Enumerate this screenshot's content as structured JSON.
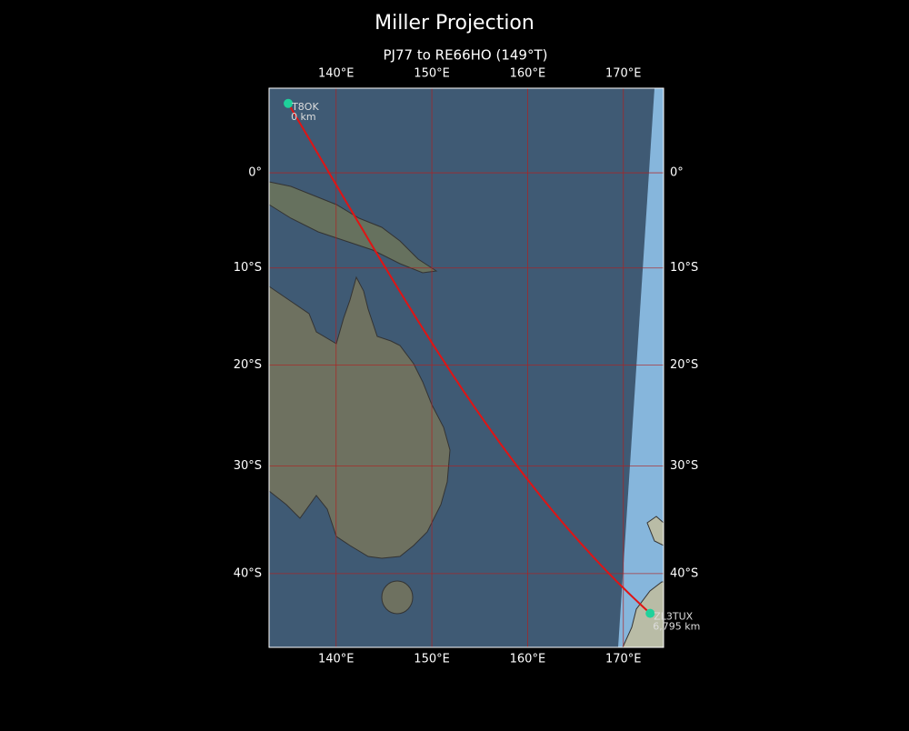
{
  "title": "Miller Projection",
  "subtitle": "PJ77 to RE66HO (149°T)",
  "map": {
    "projection": "miller",
    "lonlim": [
      133,
      174.2
    ],
    "latlim": [
      -46.4,
      8.9
    ],
    "lon_ticks": [
      {
        "value": 140,
        "label": "140°E"
      },
      {
        "value": 150,
        "label": "150°E"
      },
      {
        "value": 160,
        "label": "160°E"
      },
      {
        "value": 170,
        "label": "170°E"
      }
    ],
    "lat_ticks": [
      {
        "value": 0,
        "label": "0°"
      },
      {
        "value": -10,
        "label": "10°S"
      },
      {
        "value": -20,
        "label": "20°S"
      },
      {
        "value": -30,
        "label": "30°S"
      },
      {
        "value": -40,
        "label": "40°S"
      }
    ],
    "grid_color": "#b02020",
    "path_color": "#e01414",
    "point_color": "#1fd19b",
    "points": [
      {
        "label": "T8OK",
        "distance": "0 km",
        "lon": 135,
        "lat": 7.3
      },
      {
        "label": "ZL3TUX",
        "distance": "6,795 km",
        "lon": 172.8,
        "lat": -43.5
      }
    ]
  }
}
